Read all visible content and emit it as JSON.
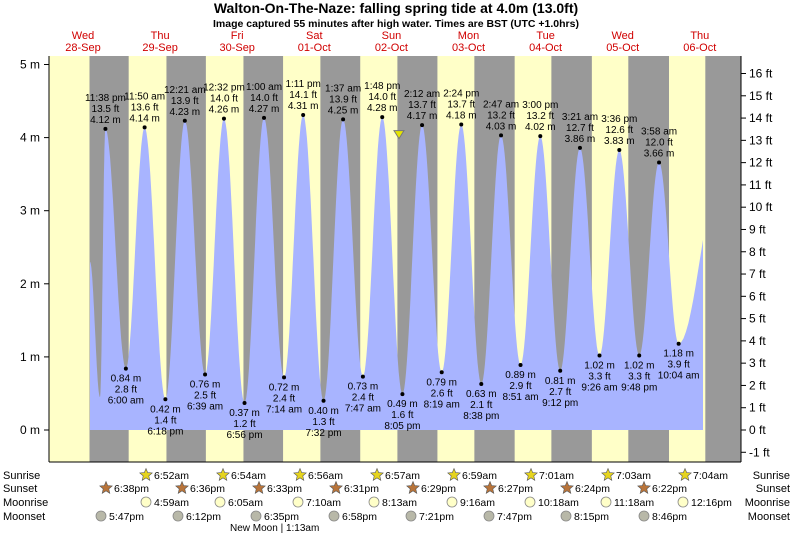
{
  "title": "Walton-On-The-Naze: falling  spring tide at 4.0m (13.0ft)",
  "subtitle": "Image captured 55 minutes after high water. Times are BST (UTC +1.0hrs)",
  "left_unit": "m",
  "right_unit": "ft",
  "new_moon_label": "New Moon | 1:13am",
  "colors": {
    "day": "#ffffc8",
    "night": "#999999",
    "tide": "#a8b4ff",
    "day_labels": "#d00000",
    "marker": "#e6e600",
    "sun": "#e6d41e",
    "sunset": "#b8743a",
    "moonrise": "#ffffc8",
    "moonset": "#b8b8a8"
  },
  "row_labels": {
    "sunrise": "Sunrise",
    "sunset": "Sunset",
    "moonrise": "Moonrise",
    "moonset": "Moonset"
  },
  "days": [
    {
      "dow": "Wed",
      "date": "28-Sep"
    },
    {
      "dow": "Thu",
      "date": "29-Sep"
    },
    {
      "dow": "Fri",
      "date": "30-Sep"
    },
    {
      "dow": "Sat",
      "date": "01-Oct"
    },
    {
      "dow": "Sun",
      "date": "02-Oct"
    },
    {
      "dow": "Mon",
      "date": "03-Oct"
    },
    {
      "dow": "Tue",
      "date": "04-Oct"
    },
    {
      "dow": "Wed",
      "date": "05-Oct"
    },
    {
      "dow": "Thu",
      "date": "06-Oct"
    }
  ],
  "sunrise_times": [
    "6:52am",
    "6:54am",
    "6:56am",
    "6:57am",
    "6:59am",
    "7:01am",
    "7:03am",
    "7:04am"
  ],
  "sunset_times": [
    "6:38pm",
    "6:36pm",
    "6:33pm",
    "6:31pm",
    "6:29pm",
    "6:27pm",
    "6:24pm",
    "6:22pm"
  ],
  "moonrise_times": [
    "4:59am",
    "6:05am",
    "7:10am",
    "8:13am",
    "9:16am",
    "10:18am",
    "11:18am",
    "12:16pm"
  ],
  "moonset_times": [
    "5:47pm",
    "6:12pm",
    "6:35pm",
    "6:58pm",
    "7:21pm",
    "7:47pm",
    "8:15pm",
    "8:46pm"
  ],
  "chart_data": {
    "type": "area",
    "title": "Walton-On-The-Naze: falling  spring tide at 4.0m (13.0ft)",
    "xlabel": "",
    "ylabel": "m",
    "ylim": [
      -0.2,
      5.2
    ],
    "y_ticks_m": [
      0,
      1,
      2,
      3,
      4,
      5
    ],
    "y_ticks_ft": [
      -1,
      0,
      1,
      2,
      3,
      4,
      5,
      6,
      7,
      8,
      9,
      10,
      11,
      12,
      13,
      14,
      15,
      16
    ],
    "current_level_m": 4.0,
    "events": [
      {
        "type": "high",
        "time": "11:38 pm",
        "m": "4.12 m",
        "ft": "13.5 ft",
        "value": 4.12
      },
      {
        "type": "low",
        "time": "6:00 am",
        "m": "0.84 m",
        "ft": "2.8 ft",
        "value": 0.84
      },
      {
        "type": "high",
        "time": "11:50 am",
        "m": "4.14 m",
        "ft": "13.6 ft",
        "value": 4.14
      },
      {
        "type": "low",
        "time": "6:18 pm",
        "m": "0.42 m",
        "ft": "1.4 ft",
        "value": 0.42
      },
      {
        "type": "high",
        "time": "12:21 am",
        "m": "4.23 m",
        "ft": "13.9 ft",
        "value": 4.23
      },
      {
        "type": "low",
        "time": "6:39 am",
        "m": "0.76 m",
        "ft": "2.5 ft",
        "value": 0.76
      },
      {
        "type": "high",
        "time": "12:32 pm",
        "m": "4.26 m",
        "ft": "14.0 ft",
        "value": 4.26
      },
      {
        "type": "low",
        "time": "6:56 pm",
        "m": "0.37 m",
        "ft": "1.2 ft",
        "value": 0.37
      },
      {
        "type": "high",
        "time": "1:00 am",
        "m": "4.27 m",
        "ft": "14.0 ft",
        "value": 4.27
      },
      {
        "type": "low",
        "time": "7:14 am",
        "m": "0.72 m",
        "ft": "2.4 ft",
        "value": 0.72
      },
      {
        "type": "high",
        "time": "1:11 pm",
        "m": "4.31 m",
        "ft": "14.1 ft",
        "value": 4.31
      },
      {
        "type": "low",
        "time": "7:32 pm",
        "m": "0.40 m",
        "ft": "1.3 ft",
        "value": 0.4
      },
      {
        "type": "high",
        "time": "1:37 am",
        "m": "4.25 m",
        "ft": "13.9 ft",
        "value": 4.25
      },
      {
        "type": "low",
        "time": "7:47 am",
        "m": "0.73 m",
        "ft": "2.4 ft",
        "value": 0.73
      },
      {
        "type": "high",
        "time": "1:48 pm",
        "m": "4.28 m",
        "ft": "14.0 ft",
        "value": 4.28
      },
      {
        "type": "low",
        "time": "8:05 pm",
        "m": "0.49 m",
        "ft": "1.6 ft",
        "value": 0.49
      },
      {
        "type": "high",
        "time": "2:12 am",
        "m": "4.17 m",
        "ft": "13.7 ft",
        "value": 4.17
      },
      {
        "type": "low",
        "time": "8:19 am",
        "m": "0.79 m",
        "ft": "2.6 ft",
        "value": 0.79
      },
      {
        "type": "high",
        "time": "2:24 pm",
        "m": "4.18 m",
        "ft": "13.7 ft",
        "value": 4.18
      },
      {
        "type": "low",
        "time": "8:38 pm",
        "m": "0.63 m",
        "ft": "2.1 ft",
        "value": 0.63
      },
      {
        "type": "high",
        "time": "2:47 am",
        "m": "4.03 m",
        "ft": "13.2 ft",
        "value": 4.03
      },
      {
        "type": "low",
        "time": "8:51 am",
        "m": "0.89 m",
        "ft": "2.9 ft",
        "value": 0.89
      },
      {
        "type": "high",
        "time": "3:00 pm",
        "m": "4.02 m",
        "ft": "13.2 ft",
        "value": 4.02
      },
      {
        "type": "low",
        "time": "9:12 pm",
        "m": "0.81 m",
        "ft": "2.7 ft",
        "value": 0.81
      },
      {
        "type": "high",
        "time": "3:21 am",
        "m": "3.86 m",
        "ft": "12.7 ft",
        "value": 3.86
      },
      {
        "type": "low",
        "time": "9:26 am",
        "m": "1.02 m",
        "ft": "3.3 ft",
        "value": 1.02
      },
      {
        "type": "high",
        "time": "3:36 pm",
        "m": "3.83 m",
        "ft": "12.6 ft",
        "value": 3.83
      },
      {
        "type": "low",
        "time": "9:48 pm",
        "m": "1.02 m",
        "ft": "3.3 ft",
        "value": 1.02
      },
      {
        "type": "high",
        "time": "3:58 am",
        "m": "3.66 m",
        "ft": "12.0 ft",
        "value": 3.66
      },
      {
        "type": "low",
        "time": "10:04 am",
        "m": "1.18 m",
        "ft": "3.9 ft",
        "value": 1.18
      }
    ]
  }
}
